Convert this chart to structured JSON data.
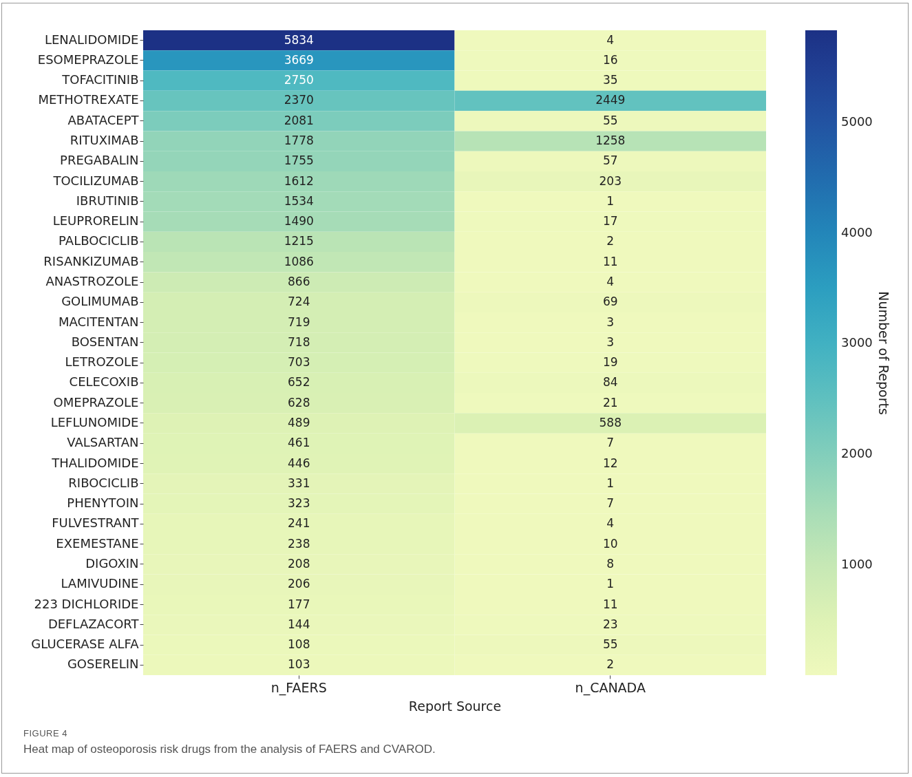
{
  "chart_data": {
    "type": "heatmap",
    "xlabel": "Report Source",
    "clabel": "Number of Reports",
    "categories": [
      "n_FAERS",
      "n_CANADA"
    ],
    "y_categories": [
      "LENALIDOMIDE",
      "ESOMEPRAZOLE",
      "TOFACITINIB",
      "METHOTREXATE",
      "ABATACEPT",
      "RITUXIMAB",
      "PREGABALIN",
      "TOCILIZUMAB",
      "IBRUTINIB",
      "LEUPRORELIN",
      "PALBOCICLIB",
      "RISANKIZUMAB",
      "ANASTROZOLE",
      "GOLIMUMAB",
      "MACITENTAN",
      "BOSENTAN",
      "LETROZOLE",
      "CELECOXIB",
      "OMEPRAZOLE",
      "LEFLUNOMIDE",
      "VALSARTAN",
      "THALIDOMIDE",
      "RIBOCICLIB",
      "PHENYTOIN",
      "FULVESTRANT",
      "EXEMESTANE",
      "DIGOXIN",
      "LAMIVUDINE",
      "223 DICHLORIDE",
      "DEFLAZACORT",
      "GLUCERASE ALFA",
      "GOSERELIN"
    ],
    "cells": [
      [
        5834,
        4
      ],
      [
        3669,
        16
      ],
      [
        2750,
        35
      ],
      [
        2370,
        2449
      ],
      [
        2081,
        55
      ],
      [
        1778,
        1258
      ],
      [
        1755,
        57
      ],
      [
        1612,
        203
      ],
      [
        1534,
        1
      ],
      [
        1490,
        17
      ],
      [
        1215,
        2
      ],
      [
        1086,
        11
      ],
      [
        866,
        4
      ],
      [
        724,
        69
      ],
      [
        719,
        3
      ],
      [
        718,
        3
      ],
      [
        703,
        19
      ],
      [
        652,
        84
      ],
      [
        628,
        21
      ],
      [
        489,
        588
      ],
      [
        461,
        7
      ],
      [
        446,
        12
      ],
      [
        331,
        1
      ],
      [
        323,
        7
      ],
      [
        241,
        4
      ],
      [
        238,
        10
      ],
      [
        208,
        8
      ],
      [
        206,
        1
      ],
      [
        177,
        11
      ],
      [
        144,
        23
      ],
      [
        108,
        55
      ],
      [
        103,
        2
      ]
    ],
    "clim": [
      1,
      5834
    ],
    "cticks": [
      1000,
      2000,
      3000,
      4000,
      5000
    ],
    "data_labels": true,
    "annotations": [
      "FIGURE 4",
      "Heat map of osteoporosis risk drugs from the analysis of FAERS and CVAROD."
    ]
  }
}
